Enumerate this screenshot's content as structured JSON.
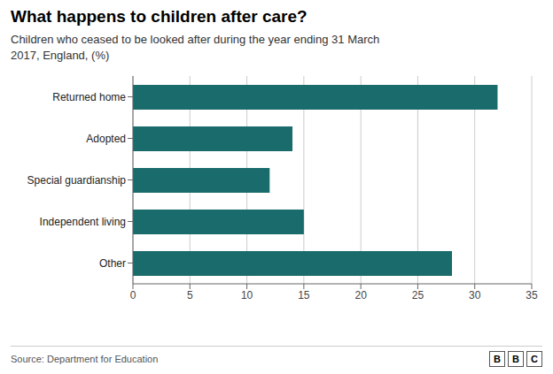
{
  "chart_data": {
    "type": "bar",
    "orientation": "horizontal",
    "title": "What happens to children after care?",
    "subtitle": "Children who ceased to be looked after during the year ending 31 March\n2017, England, (%)",
    "categories": [
      "Returned home",
      "Adopted",
      "Special guardianship",
      "Independent living",
      "Other"
    ],
    "values": [
      32,
      14,
      12,
      15,
      28
    ],
    "color": "#1a6b6b",
    "xlim": [
      0,
      35
    ],
    "xticks": [
      0,
      5,
      10,
      15,
      20,
      25,
      30,
      35
    ],
    "grid": true,
    "annotations": [
      "Source: Department for Education",
      "BBC"
    ]
  }
}
